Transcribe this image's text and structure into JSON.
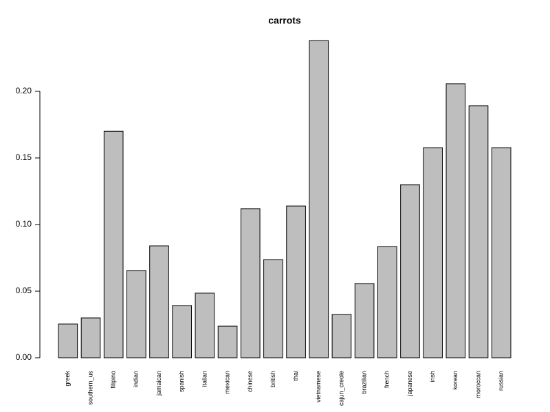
{
  "chart_data": {
    "type": "bar",
    "title": "carrots",
    "categories": [
      "greek",
      "southern_us",
      "filipino",
      "indian",
      "jamaican",
      "spanish",
      "italian",
      "mexican",
      "chinese",
      "british",
      "thai",
      "vietnamese",
      "cajun_creole",
      "brazilian",
      "french",
      "japanese",
      "irish",
      "korean",
      "moroccan",
      "russian"
    ],
    "values": [
      0.0253,
      0.0299,
      0.17,
      0.0655,
      0.084,
      0.0392,
      0.0485,
      0.0237,
      0.1119,
      0.0737,
      0.1139,
      0.2381,
      0.0325,
      0.0557,
      0.0835,
      0.1299,
      0.1577,
      0.2057,
      0.1892,
      0.1577
    ],
    "color": "#bebebe",
    "ylim": [
      0,
      0.245
    ],
    "yticks": [
      {
        "value": 0,
        "label": "0.00"
      },
      {
        "value": 0.05,
        "label": "0.05"
      },
      {
        "value": 0.1,
        "label": "0.10"
      },
      {
        "value": 0.15,
        "label": "0.15"
      },
      {
        "value": 0.2,
        "label": "0.20"
      }
    ]
  }
}
